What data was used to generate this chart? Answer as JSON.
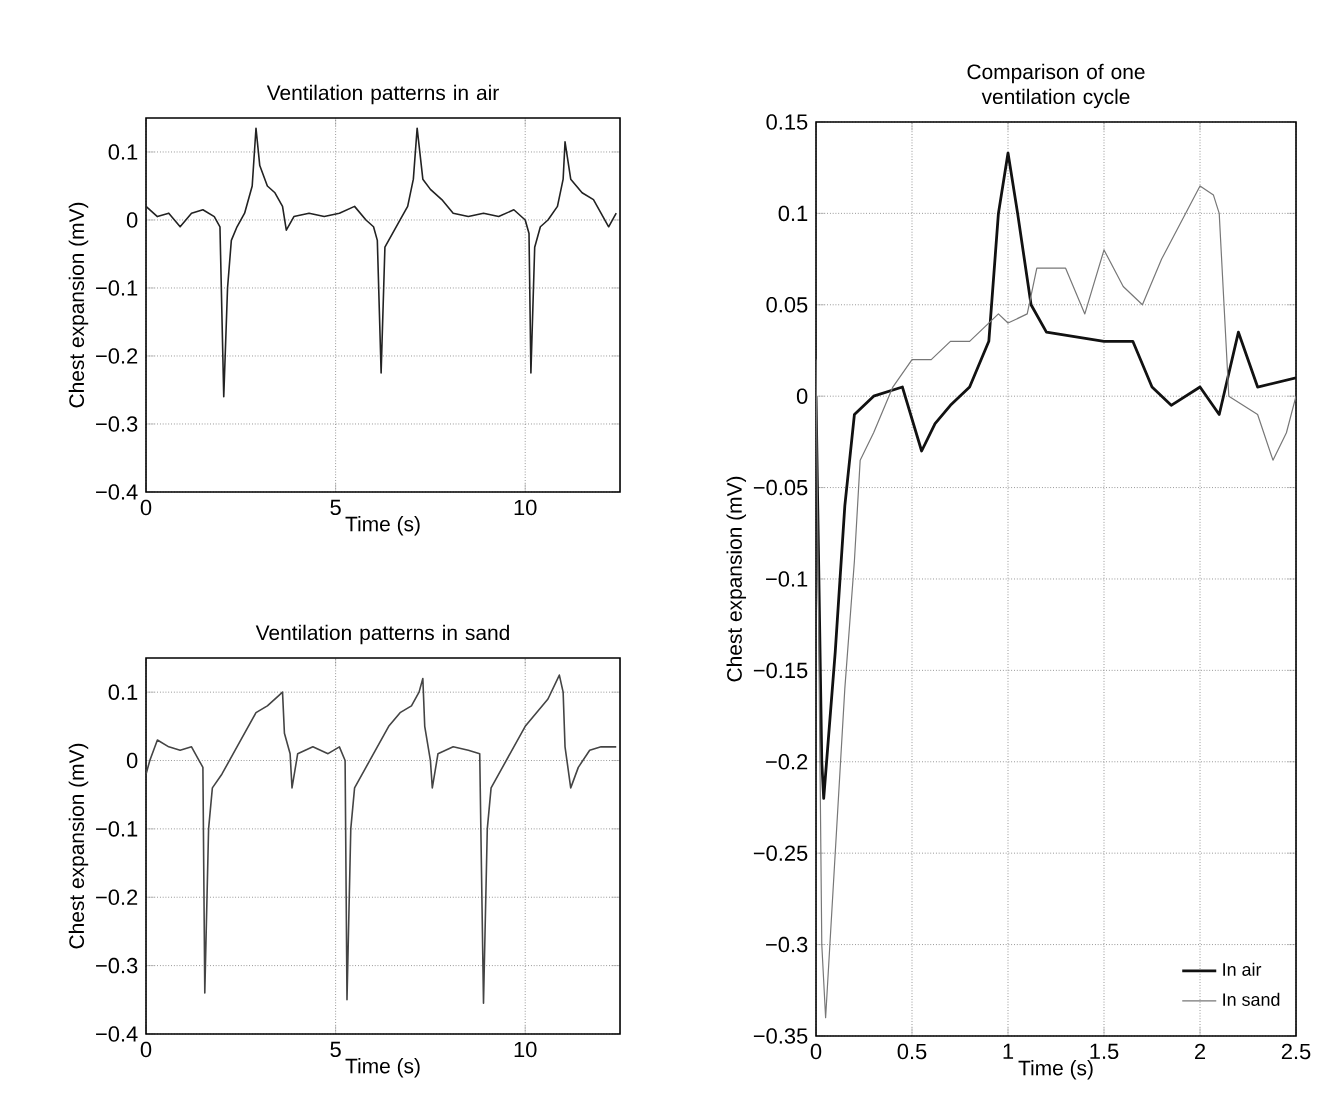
{
  "chart_data": [
    {
      "type": "line",
      "title": "Ventilation patterns in air",
      "xlabel": "Time (s)",
      "ylabel": "Chest expansion (mV)",
      "xlim": [
        0,
        12.5
      ],
      "ylim": [
        -0.4,
        0.15
      ],
      "xticks": [
        0,
        5,
        10
      ],
      "yticks": [
        {
          "value": -0.4,
          "label": "−0.4"
        },
        {
          "value": -0.3,
          "label": "−0.3"
        },
        {
          "value": -0.2,
          "label": "−0.2"
        },
        {
          "value": -0.1,
          "label": "−0.1"
        },
        0,
        0.1
      ],
      "grid": true,
      "series": [
        {
          "color": "#222222",
          "x": [
            0,
            0.3,
            0.6,
            0.9,
            1.2,
            1.5,
            1.8,
            1.95,
            2.05,
            2.15,
            2.25,
            2.4,
            2.6,
            2.8,
            2.9,
            3.0,
            3.2,
            3.4,
            3.6,
            3.7,
            3.9,
            4.3,
            4.7,
            5.1,
            5.5,
            5.8,
            6.0,
            6.1,
            6.2,
            6.3,
            6.5,
            6.7,
            6.9,
            7.05,
            7.15,
            7.3,
            7.5,
            7.8,
            8.1,
            8.5,
            8.9,
            9.3,
            9.7,
            10.0,
            10.1,
            10.15,
            10.25,
            10.4,
            10.6,
            10.85,
            11.0,
            11.05,
            11.2,
            11.5,
            11.8,
            12.0,
            12.2,
            12.4
          ],
          "values": [
            0.02,
            0.005,
            0.01,
            -0.01,
            0.01,
            0.015,
            0.005,
            -0.01,
            -0.26,
            -0.1,
            -0.03,
            -0.01,
            0.01,
            0.05,
            0.135,
            0.08,
            0.05,
            0.04,
            0.02,
            -0.015,
            0.005,
            0.01,
            0.005,
            0.01,
            0.02,
            0.0,
            -0.01,
            -0.03,
            -0.225,
            -0.04,
            -0.02,
            0.0,
            0.02,
            0.06,
            0.135,
            0.06,
            0.045,
            0.03,
            0.01,
            0.005,
            0.01,
            0.005,
            0.015,
            0.0,
            -0.02,
            -0.225,
            -0.04,
            -0.01,
            0.0,
            0.02,
            0.06,
            0.115,
            0.06,
            0.04,
            0.03,
            0.01,
            -0.01,
            0.01
          ]
        }
      ]
    },
    {
      "type": "line",
      "title": "Ventilation patterns in sand",
      "xlabel": "Time (s)",
      "ylabel": "Chest expansion (mV)",
      "xlim": [
        0,
        12.5
      ],
      "ylim": [
        -0.4,
        0.15
      ],
      "xticks": [
        0,
        5,
        10
      ],
      "yticks": [
        {
          "value": -0.4,
          "label": "−0.4"
        },
        {
          "value": -0.3,
          "label": "−0.3"
        },
        {
          "value": -0.2,
          "label": "−0.2"
        },
        {
          "value": -0.1,
          "label": "−0.1"
        },
        0,
        0.1
      ],
      "grid": true,
      "series": [
        {
          "color": "#444444",
          "x": [
            0,
            0.1,
            0.3,
            0.6,
            0.9,
            1.2,
            1.4,
            1.5,
            1.55,
            1.65,
            1.75,
            2.0,
            2.3,
            2.6,
            2.9,
            3.2,
            3.5,
            3.6,
            3.65,
            3.8,
            3.85,
            4.0,
            4.4,
            4.8,
            5.1,
            5.25,
            5.3,
            5.4,
            5.5,
            5.8,
            6.1,
            6.4,
            6.7,
            7.0,
            7.2,
            7.3,
            7.35,
            7.5,
            7.55,
            7.7,
            8.1,
            8.5,
            8.8,
            8.9,
            9.0,
            9.1,
            9.4,
            9.7,
            10.0,
            10.3,
            10.6,
            10.9,
            11.0,
            11.05,
            11.2,
            11.4,
            11.7,
            12.0,
            12.4
          ],
          "values": [
            -0.02,
            0.0,
            0.03,
            0.02,
            0.015,
            0.02,
            0.0,
            -0.01,
            -0.34,
            -0.1,
            -0.04,
            -0.02,
            0.01,
            0.04,
            0.07,
            0.08,
            0.095,
            0.1,
            0.04,
            0.01,
            -0.04,
            0.01,
            0.02,
            0.01,
            0.02,
            0.0,
            -0.35,
            -0.1,
            -0.04,
            -0.01,
            0.02,
            0.05,
            0.07,
            0.08,
            0.1,
            0.12,
            0.05,
            0.0,
            -0.04,
            0.01,
            0.02,
            0.015,
            0.01,
            -0.355,
            -0.1,
            -0.04,
            -0.01,
            0.02,
            0.05,
            0.07,
            0.09,
            0.125,
            0.1,
            0.02,
            -0.04,
            -0.01,
            0.015,
            0.02,
            0.02
          ]
        }
      ]
    },
    {
      "type": "line",
      "title": "Comparison of one ventilation cycle",
      "xlabel": "Time (s)",
      "ylabel": "Chest expansion (mV)",
      "xlim": [
        0,
        2.5
      ],
      "ylim": [
        -0.35,
        0.15
      ],
      "xticks": [
        0,
        0.5,
        1,
        1.5,
        2,
        2.5
      ],
      "yticks": [
        {
          "value": -0.35,
          "label": "−0.35"
        },
        {
          "value": -0.3,
          "label": "−0.3"
        },
        {
          "value": -0.25,
          "label": "−0.25"
        },
        {
          "value": -0.2,
          "label": "−0.2"
        },
        {
          "value": -0.15,
          "label": "−0.15"
        },
        {
          "value": -0.1,
          "label": "−0.1"
        },
        {
          "value": -0.05,
          "label": "−0.05"
        },
        0,
        0.05,
        0.1,
        0.15
      ],
      "grid": true,
      "legend": "bottom right",
      "series": [
        {
          "name": "In air",
          "color": "#111111",
          "x": [
            0,
            0.03,
            0.04,
            0.1,
            0.15,
            0.2,
            0.3,
            0.45,
            0.55,
            0.62,
            0.7,
            0.8,
            0.9,
            0.95,
            1.0,
            1.05,
            1.12,
            1.2,
            1.5,
            1.65,
            1.75,
            1.85,
            2.0,
            2.1,
            2.2,
            2.3,
            2.5
          ],
          "values": [
            0,
            -0.2,
            -0.22,
            -0.14,
            -0.06,
            -0.01,
            0.0,
            0.005,
            -0.03,
            -0.015,
            -0.005,
            0.005,
            0.03,
            0.1,
            0.133,
            0.1,
            0.05,
            0.035,
            0.03,
            0.03,
            0.005,
            -0.005,
            0.005,
            -0.01,
            0.035,
            0.005,
            0.01
          ]
        },
        {
          "name": "In sand",
          "color": "#777777",
          "x": [
            0,
            0.03,
            0.05,
            0.1,
            0.15,
            0.2,
            0.23,
            0.3,
            0.4,
            0.5,
            0.6,
            0.7,
            0.8,
            0.9,
            0.95,
            1.0,
            1.1,
            1.15,
            1.3,
            1.4,
            1.5,
            1.6,
            1.7,
            1.8,
            1.9,
            2.0,
            2.07,
            2.1,
            2.15,
            2.3,
            2.38,
            2.45,
            2.5
          ],
          "values": [
            0.02,
            -0.3,
            -0.34,
            -0.25,
            -0.16,
            -0.09,
            -0.035,
            -0.02,
            0.005,
            0.02,
            0.02,
            0.03,
            0.03,
            0.04,
            0.045,
            0.04,
            0.045,
            0.07,
            0.07,
            0.045,
            0.08,
            0.06,
            0.05,
            0.075,
            0.095,
            0.115,
            0.11,
            0.1,
            0.0,
            -0.01,
            -0.035,
            -0.02,
            0.0
          ]
        }
      ]
    }
  ]
}
